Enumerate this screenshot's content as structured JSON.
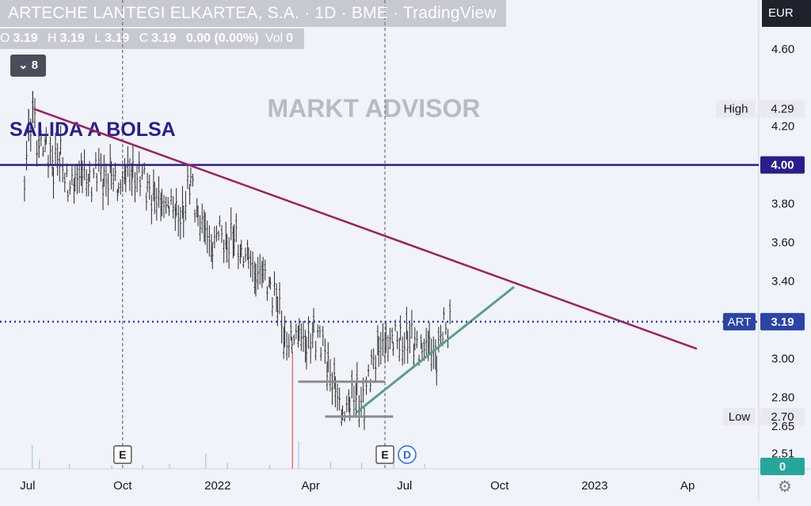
{
  "header": {
    "title": "ARTECHE LANTEGI ELKARTEA, S.A. · 1D · BME · TradingView",
    "ohlc": {
      "o_label": "O",
      "o": "3.19",
      "h_label": "H",
      "h": "3.19",
      "l_label": "L",
      "l": "3.19",
      "c_label": "C",
      "c": "3.19",
      "change": "0.00 (0.00%)",
      "vol_label": "Vol",
      "vol": "0"
    },
    "indicators_count": "8",
    "currency": "EUR"
  },
  "watermark": "MARKT ADVISOR",
  "annotation_label": "SALIDA A BOLSA",
  "colors": {
    "ipo_line": "#2a1f8a",
    "trend_line": "#a0205c",
    "support_line": "#5a9e8a",
    "range_line": "#8c8c8c",
    "price_line": "#2a44a8",
    "bars": "#2b2b2b",
    "volume": "#a9c7e8",
    "volume_up": "#ef5350"
  },
  "chart_data": {
    "type": "bar",
    "title": "",
    "x_ticks": [
      "Jul",
      "Oct",
      "2022",
      "Apr",
      "Jul",
      "Oct",
      "2023",
      "Ap"
    ],
    "y_ticks": [
      "4.60",
      "4.20",
      "3.80",
      "3.60",
      "3.40",
      "3.00",
      "2.80",
      "2.65",
      "2.51"
    ],
    "ylim": [
      2.45,
      4.82
    ],
    "price_labels": [
      {
        "name": "High",
        "value": "4.29"
      },
      {
        "name": "",
        "value": "4.00"
      },
      {
        "name": "ART",
        "value": "3.19"
      },
      {
        "name": "Low",
        "value": "2.70"
      },
      {
        "name": "",
        "value": "0"
      }
    ],
    "events": [
      {
        "marker": "E",
        "date": "2021-10"
      },
      {
        "marker": "E",
        "date": "2022-06"
      },
      {
        "marker": "D",
        "date": "2022-06"
      }
    ],
    "series": [
      {
        "name": "",
        "path": [
          [
            "2021-06-28",
            3.88
          ],
          [
            "2021-07-02",
            4.18
          ],
          [
            "2021-07-06",
            4.27
          ],
          [
            "2021-07-12",
            4.08
          ],
          [
            "2021-07-19",
            4.12
          ],
          [
            "2021-07-26",
            3.97
          ],
          [
            "2021-08-02",
            4.08
          ],
          [
            "2021-08-09",
            3.85
          ],
          [
            "2021-08-16",
            3.94
          ],
          [
            "2021-08-23",
            3.96
          ],
          [
            "2021-08-30",
            3.9
          ],
          [
            "2021-09-06",
            3.99
          ],
          [
            "2021-09-13",
            3.92
          ],
          [
            "2021-09-20",
            3.96
          ],
          [
            "2021-09-27",
            3.87
          ],
          [
            "2021-10-04",
            3.98
          ],
          [
            "2021-10-11",
            3.93
          ],
          [
            "2021-10-18",
            3.97
          ],
          [
            "2021-10-25",
            3.87
          ],
          [
            "2021-11-01",
            3.84
          ],
          [
            "2021-11-08",
            3.78
          ],
          [
            "2021-11-15",
            3.83
          ],
          [
            "2021-11-22",
            3.72
          ],
          [
            "2021-11-29",
            3.77
          ],
          [
            "2021-12-06",
            3.92
          ],
          [
            "2021-12-13",
            3.74
          ],
          [
            "2021-12-20",
            3.64
          ],
          [
            "2021-12-27",
            3.6
          ],
          [
            "2022-01-03",
            3.64
          ],
          [
            "2022-01-10",
            3.6
          ],
          [
            "2022-01-17",
            3.62
          ],
          [
            "2022-01-24",
            3.56
          ],
          [
            "2022-01-31",
            3.49
          ],
          [
            "2022-02-07",
            3.46
          ],
          [
            "2022-02-14",
            3.42
          ],
          [
            "2022-02-21",
            3.38
          ],
          [
            "2022-02-28",
            3.28
          ],
          [
            "2022-03-07",
            3.12
          ],
          [
            "2022-03-14",
            3.05
          ],
          [
            "2022-03-21",
            3.18
          ],
          [
            "2022-03-28",
            3.03
          ],
          [
            "2022-04-04",
            3.15
          ],
          [
            "2022-04-11",
            3.08
          ],
          [
            "2022-04-18",
            2.98
          ],
          [
            "2022-04-25",
            2.82
          ],
          [
            "2022-05-02",
            2.72
          ],
          [
            "2022-05-09",
            2.78
          ],
          [
            "2022-05-16",
            2.82
          ],
          [
            "2022-05-23",
            2.76
          ],
          [
            "2022-05-30",
            2.98
          ],
          [
            "2022-06-06",
            3.04
          ],
          [
            "2022-06-13",
            3.08
          ],
          [
            "2022-06-20",
            3.12
          ],
          [
            "2022-06-27",
            3.07
          ],
          [
            "2022-07-04",
            3.12
          ],
          [
            "2022-07-11",
            3.08
          ],
          [
            "2022-07-18",
            3.05
          ],
          [
            "2022-07-25",
            3.06
          ],
          [
            "2022-08-01",
            3.02
          ],
          [
            "2022-08-08",
            3.15
          ],
          [
            "2022-08-15",
            3.19
          ]
        ]
      }
    ],
    "lines": [
      {
        "name": "ipo_level",
        "y": 4.0
      },
      {
        "name": "downtrend",
        "from": [
          "2021-07-07",
          4.29
        ],
        "to": [
          "2023-04-10",
          3.05
        ]
      },
      {
        "name": "uptrend",
        "from": [
          "2022-05-15",
          2.72
        ],
        "to": [
          "2022-10-15",
          3.37
        ]
      },
      {
        "name": "resistance_range",
        "y": 2.88,
        "from": "2022-03-20",
        "to": "2022-06-12"
      },
      {
        "name": "support_range",
        "y": 2.7,
        "from": "2022-04-15",
        "to": "2022-06-20"
      }
    ]
  }
}
